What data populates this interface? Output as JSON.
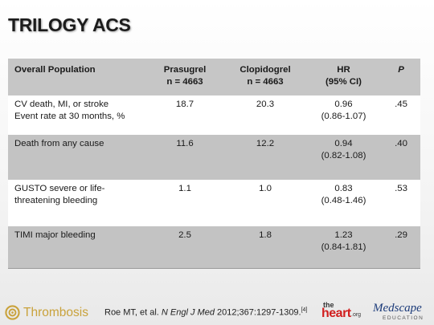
{
  "slide": {
    "title": "TRILOGY ACS"
  },
  "table": {
    "headers": [
      {
        "line1": "Overall Population",
        "line2": ""
      },
      {
        "line1": "Prasugrel",
        "line2": "n = 4663"
      },
      {
        "line1": "Clopidogrel",
        "line2": "n = 4663"
      },
      {
        "line1": "HR",
        "line2": "(95% CI)"
      },
      {
        "line1": "P",
        "line2": ""
      }
    ],
    "rows": [
      {
        "outcome_line1": "CV death, MI, or stroke",
        "outcome_line2": "Event rate at 30 months, %",
        "prasugrel": "18.7",
        "clopidogrel": "20.3",
        "hr": "0.96",
        "ci": "(0.86-1.07)",
        "p": ".45"
      },
      {
        "outcome_line1": "Death from any cause",
        "outcome_line2": "",
        "prasugrel": "11.6",
        "clopidogrel": "12.2",
        "hr": "0.94",
        "ci": "(0.82-1.08)",
        "p": ".40"
      },
      {
        "outcome_line1": "GUSTO severe or life-",
        "outcome_line2": "threatening bleeding",
        "prasugrel": "1.1",
        "clopidogrel": "1.0",
        "hr": "0.83",
        "ci": "(0.48-1.46)",
        "p": ".53"
      },
      {
        "outcome_line1": "TIMI major bleeding",
        "outcome_line2": "",
        "prasugrel": "2.5",
        "clopidogrel": "1.8",
        "hr": "1.23",
        "ci": "(0.84-1.81)",
        "p": ".29"
      }
    ]
  },
  "footer": {
    "logo_left": "Thrombosis",
    "citation_authors": "Roe MT, et al. ",
    "citation_journal": "N Engl J Med",
    "citation_details": " 2012;367:1297-1309.",
    "citation_ref": "[4]",
    "logo_heart_the": "the",
    "logo_heart_main": "heart",
    "logo_heart_org": ".org",
    "logo_medscape": "Medscape",
    "logo_medscape_sub": "EDUCATION"
  },
  "colors": {
    "header_row": "#c6c6c6",
    "shaded_row": "#c3c3c3",
    "thrombosis_gold": "#c9a23b",
    "heart_red": "#d11f1f",
    "medscape_blue": "#1d3c7a"
  }
}
